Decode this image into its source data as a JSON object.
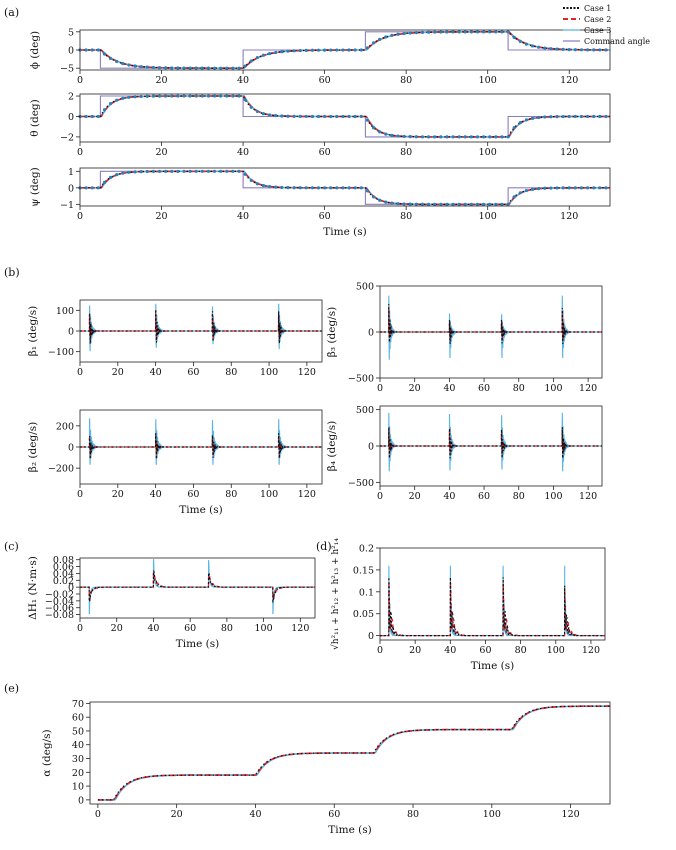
{
  "panel_labels": [
    "(a)",
    "(b)",
    "(c)",
    "(d)",
    "(e)"
  ],
  "legend": {
    "entries": [
      {
        "label": "Case 1",
        "color": "#111111",
        "style": "dotted"
      },
      {
        "label": "Case 2",
        "color": "#e0242a",
        "style": "dashed"
      },
      {
        "label": "Case 3",
        "color": "#5ab4e4",
        "style": "solid"
      },
      {
        "label": "Command angle",
        "color": "#8d7dc0",
        "style": "solid"
      }
    ]
  },
  "colors": {
    "case1": "#111111",
    "case2": "#e0242a",
    "case3": "#5ab4e4",
    "command": "#8d7dc0",
    "marker": "#2f7fb8"
  },
  "chart_data": [
    {
      "id": "a1",
      "type": "line",
      "panel": "(a)",
      "ylabel": "ϕ (deg)",
      "xlim": [
        0,
        130
      ],
      "ylim": [
        -5.5,
        5.5
      ],
      "xticks": [
        0,
        20,
        40,
        60,
        80,
        100,
        120
      ],
      "yticks": [
        -5,
        0,
        5
      ],
      "switch_times": [
        0,
        5,
        40,
        70,
        105
      ],
      "command_levels": [
        0,
        -5,
        0,
        5,
        0
      ],
      "time_constant": 4
    },
    {
      "id": "a2",
      "type": "line",
      "panel": "(a)",
      "ylabel": "θ (deg)",
      "xlim": [
        0,
        130
      ],
      "ylim": [
        -2.5,
        2.2
      ],
      "xticks": [
        0,
        20,
        40,
        60,
        80,
        100,
        120
      ],
      "yticks": [
        -2,
        0,
        2
      ],
      "switch_times": [
        0,
        5,
        40,
        70,
        105
      ],
      "command_levels": [
        0,
        2,
        0,
        -2,
        0
      ],
      "time_constant": 2.5
    },
    {
      "id": "a3",
      "type": "line",
      "panel": "(a)",
      "xlabel": "Time (s)",
      "ylabel": "ψ (deg)",
      "xlim": [
        0,
        130
      ],
      "ylim": [
        -1.1,
        1.2
      ],
      "xticks": [
        0,
        20,
        40,
        60,
        80,
        100,
        120
      ],
      "yticks": [
        -1,
        0,
        1
      ],
      "switch_times": [
        0,
        5,
        40,
        70,
        105
      ],
      "command_levels": [
        0,
        1,
        0,
        -1,
        0
      ],
      "time_constant": 2.5
    },
    {
      "id": "b1",
      "type": "line",
      "panel": "(b)",
      "ylabel": "β̇₁ (deg/s)",
      "xlim": [
        0,
        128
      ],
      "ylim": [
        -150,
        150
      ],
      "xticks": [
        0,
        20,
        40,
        60,
        80,
        100,
        120
      ],
      "yticks": [
        -100,
        0,
        100
      ],
      "spike_times": [
        5,
        40,
        70,
        105
      ],
      "spike_peaks_case3": [
        [
          140,
          -145
        ],
        [
          150,
          -120
        ],
        [
          135,
          -95
        ],
        [
          150,
          -130
        ]
      ],
      "spike_peaks_case1": [
        [
          100,
          -110
        ],
        [
          120,
          -100
        ],
        [
          110,
          -90
        ],
        [
          110,
          -105
        ]
      ]
    },
    {
      "id": "b3",
      "type": "line",
      "panel": "(b)",
      "ylabel": "β̇₃ (deg/s)",
      "xlim": [
        0,
        128
      ],
      "ylim": [
        -500,
        500
      ],
      "xticks": [
        0,
        20,
        40,
        60,
        80,
        100,
        120
      ],
      "yticks": [
        -500,
        0,
        500
      ],
      "spike_times": [
        5,
        40,
        70,
        105
      ],
      "spike_peaks_case3": [
        [
          450,
          -450
        ],
        [
          230,
          -420
        ],
        [
          220,
          -420
        ],
        [
          450,
          -420
        ]
      ],
      "spike_peaks_case1": [
        [
          350,
          -200
        ],
        [
          150,
          -230
        ],
        [
          150,
          -220
        ],
        [
          300,
          -230
        ]
      ]
    },
    {
      "id": "b2",
      "type": "line",
      "panel": "(b)",
      "xlabel": "Time (s)",
      "ylabel": "β̇₂ (deg/s)",
      "xlim": [
        0,
        128
      ],
      "ylim": [
        -350,
        350
      ],
      "xticks": [
        0,
        20,
        40,
        60,
        80,
        100,
        120
      ],
      "yticks": [
        -200,
        0,
        200
      ],
      "spike_times": [
        5,
        40,
        70,
        105
      ],
      "spike_peaks_case3": [
        [
          310,
          -250
        ],
        [
          300,
          -250
        ],
        [
          290,
          -250
        ],
        [
          300,
          -250
        ]
      ],
      "spike_peaks_case1": [
        [
          120,
          -200
        ],
        [
          150,
          -200
        ],
        [
          130,
          -180
        ],
        [
          150,
          -190
        ]
      ]
    },
    {
      "id": "b4",
      "type": "line",
      "panel": "(b)",
      "ylabel": "β̇₄ (deg/s)",
      "xlim": [
        0,
        128
      ],
      "ylim": [
        -550,
        550
      ],
      "xticks": [
        0,
        20,
        40,
        60,
        80,
        100,
        120
      ],
      "yticks": [
        -500,
        0,
        500
      ],
      "spike_times": [
        5,
        40,
        70,
        105
      ],
      "spike_peaks_case3": [
        [
          520,
          -520
        ],
        [
          500,
          -500
        ],
        [
          480,
          -480
        ],
        [
          520,
          -520
        ]
      ],
      "spike_peaks_case1": [
        [
          300,
          -300
        ],
        [
          280,
          -300
        ],
        [
          260,
          -290
        ],
        [
          300,
          -300
        ]
      ]
    },
    {
      "id": "c",
      "type": "line",
      "panel": "(c)",
      "xlabel": "Time (s)",
      "ylabel": "ΔH₁ (N·m·s)",
      "xlim": [
        0,
        128
      ],
      "ylim": [
        -0.09,
        0.085
      ],
      "xticks": [
        0,
        20,
        40,
        60,
        80,
        100,
        120
      ],
      "yticks": [
        -0.08,
        -0.06,
        -0.04,
        -0.02,
        0,
        0.02,
        0.04,
        0.06,
        0.08
      ],
      "spike_times": [
        5,
        40,
        70,
        105
      ],
      "spike_signs": [
        -1,
        1,
        1,
        -1
      ],
      "spike_peaks_case3": [
        0.075,
        0.078,
        0.075,
        0.075
      ],
      "spike_peaks_case1": [
        0.04,
        0.045,
        0.04,
        0.04
      ]
    },
    {
      "id": "d",
      "type": "line",
      "panel": "(d)",
      "xlabel": "Time (s)",
      "ylabel": "√h²₁₁ + h²₁₂ + h²₁₃ + h²₁₄",
      "xlim": [
        0,
        128
      ],
      "ylim": [
        -0.01,
        0.2
      ],
      "xticks": [
        0,
        20,
        40,
        60,
        80,
        100,
        120
      ],
      "yticks": [
        0,
        0.05,
        0.1,
        0.15,
        0.2
      ],
      "spike_times": [
        5,
        40,
        70,
        105
      ],
      "spike_peaks_case3": [
        0.185,
        0.185,
        0.185,
        0.185
      ],
      "spike_peaks_case1": [
        0.14,
        0.14,
        0.14,
        0.12
      ]
    },
    {
      "id": "e",
      "type": "line",
      "panel": "(e)",
      "xlabel": "Time (s)",
      "ylabel": "α (deg/s)",
      "xlim": [
        -2,
        130
      ],
      "ylim": [
        -3,
        71
      ],
      "xticks": [
        0,
        20,
        40,
        60,
        80,
        100,
        120
      ],
      "yticks": [
        0,
        10,
        20,
        30,
        40,
        50,
        60,
        70
      ],
      "step_times": [
        4,
        40,
        70,
        105
      ],
      "levels": [
        0,
        18,
        34,
        51,
        68
      ],
      "time_constant": 3.2
    }
  ]
}
